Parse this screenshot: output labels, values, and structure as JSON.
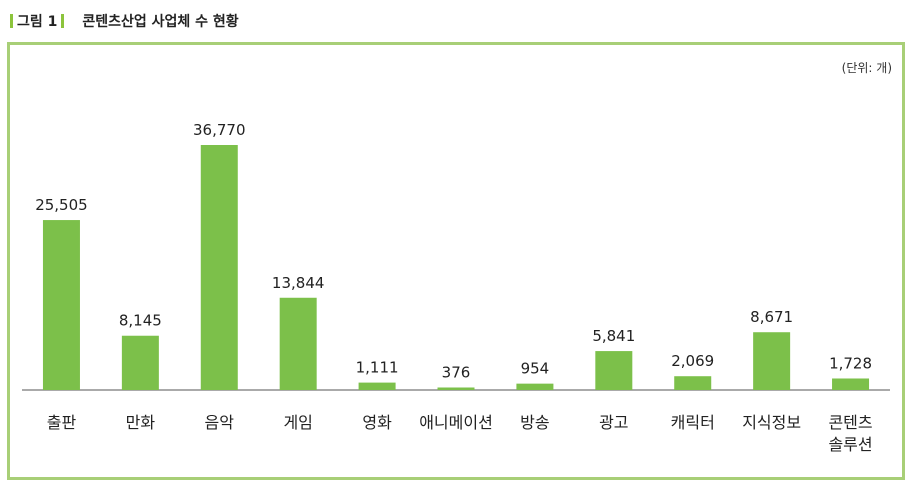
{
  "figure": {
    "label": "그림 1",
    "title": "콘텐츠산업 사업체 수 현황"
  },
  "chart_data": {
    "type": "bar",
    "unit": "(단위: 개)",
    "categories": [
      "출판",
      "만화",
      "음악",
      "게임",
      "영화",
      "애니메이션",
      "방송",
      "광고",
      "캐릭터",
      "지식정보",
      "콘텐츠 솔루션"
    ],
    "values": [
      25505,
      8145,
      36770,
      13844,
      1111,
      376,
      954,
      5841,
      2069,
      8671,
      1728
    ],
    "value_labels": [
      "25,505",
      "8,145",
      "36,770",
      "13,844",
      "1,111",
      "376",
      "954",
      "5,841",
      "2,069",
      "8,671",
      "1,728"
    ],
    "ylim": [
      0,
      36770
    ],
    "bar_color": "#7cc04a",
    "grid": false
  }
}
